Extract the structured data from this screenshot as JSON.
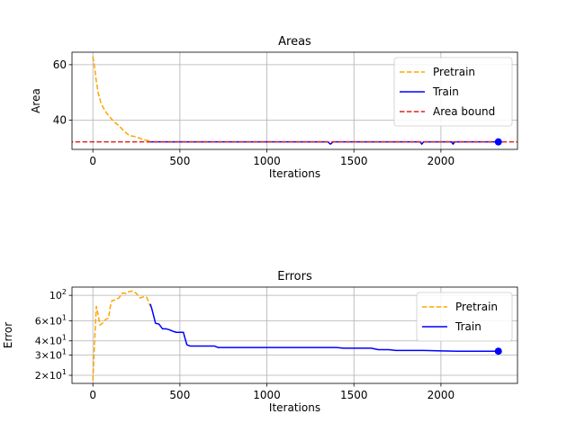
{
  "colors": {
    "pretrain": "#ffa500",
    "train": "#0000ff",
    "bound": "#d62728",
    "grid": "#b0b0b0"
  },
  "chart_data": [
    {
      "type": "line",
      "title": "Areas",
      "xlabel": "Iterations",
      "ylabel": "Area",
      "xlim": [
        -120,
        2440
      ],
      "ylim": [
        29.5,
        64.5
      ],
      "yscale": "linear",
      "xticks": [
        0,
        500,
        1000,
        1500,
        2000
      ],
      "yticks": [
        40,
        60
      ],
      "grid": true,
      "legend_position": "top-right",
      "series": [
        {
          "name": "Pretrain",
          "style": "dashed",
          "color": "orange",
          "x": [
            0,
            10,
            20,
            30,
            45,
            60,
            80,
            100,
            120,
            150,
            180,
            210,
            250,
            290,
            330
          ],
          "y": [
            63,
            59,
            54,
            50,
            46.5,
            44.5,
            42.5,
            41,
            39.5,
            38,
            36,
            34.5,
            34,
            33,
            32.5
          ]
        },
        {
          "name": "Train",
          "style": "solid",
          "color": "blue",
          "x": [
            320,
            1350,
            1365,
            1380,
            1880,
            1890,
            1900,
            2060,
            2070,
            2080,
            2330
          ],
          "y": [
            32.2,
            32.2,
            31.4,
            32.2,
            32.2,
            31.4,
            32.2,
            32.2,
            31.4,
            32.2,
            32.2
          ],
          "end_marker": {
            "x": 2330,
            "y": 32.2
          }
        },
        {
          "name": "Area bound",
          "style": "dashed",
          "color": "red",
          "hline": 32.2
        }
      ]
    },
    {
      "type": "line",
      "title": "Errors",
      "xlabel": "Iterations",
      "ylabel": "Error",
      "xlim": [
        -120,
        2440
      ],
      "ylim": [
        17,
        118
      ],
      "yscale": "log",
      "xticks": [
        0,
        500,
        1000,
        1500,
        2000
      ],
      "yticks": [
        {
          "value": 20,
          "base": "2×10",
          "exp": "1"
        },
        {
          "value": 30,
          "base": "3×10",
          "exp": "1"
        },
        {
          "value": 40,
          "base": "4×10",
          "exp": "1"
        },
        {
          "value": 60,
          "base": "6×10",
          "exp": "1"
        },
        {
          "value": 100,
          "base": "10",
          "exp": "2"
        }
      ],
      "grid": true,
      "legend_position": "top-right",
      "series": [
        {
          "name": "Pretrain",
          "style": "dashed",
          "color": "orange",
          "x": [
            0,
            10,
            20,
            30,
            40,
            55,
            75,
            90,
            100,
            110,
            130,
            150,
            170,
            190,
            210,
            230,
            250,
            270,
            290,
            310,
            330
          ],
          "y": [
            18,
            40,
            80,
            68,
            55,
            57,
            62,
            63,
            80,
            90,
            91,
            95,
            105,
            104,
            108,
            109,
            104,
            95,
            97,
            96,
            80
          ]
        },
        {
          "name": "Train",
          "style": "solid",
          "color": "blue",
          "x": [
            330,
            340,
            360,
            380,
            400,
            420,
            440,
            460,
            480,
            500,
            510,
            520,
            540,
            560,
            600,
            700,
            720,
            900,
            1000,
            1200,
            1400,
            1440,
            1500,
            1600,
            1640,
            1700,
            1740,
            1800,
            1900,
            2000,
            2100,
            2200,
            2330
          ],
          "y": [
            84,
            75,
            57,
            56,
            51,
            51,
            50,
            48.5,
            47.5,
            47.5,
            47.5,
            47.5,
            37,
            36,
            36,
            36,
            35,
            35,
            35,
            35,
            35,
            34.5,
            34.5,
            34.5,
            33.5,
            33.5,
            33,
            33,
            33,
            32.7,
            32.5,
            32.5,
            32.5
          ],
          "end_marker": {
            "x": 2330,
            "y": 32.5
          }
        }
      ]
    }
  ]
}
